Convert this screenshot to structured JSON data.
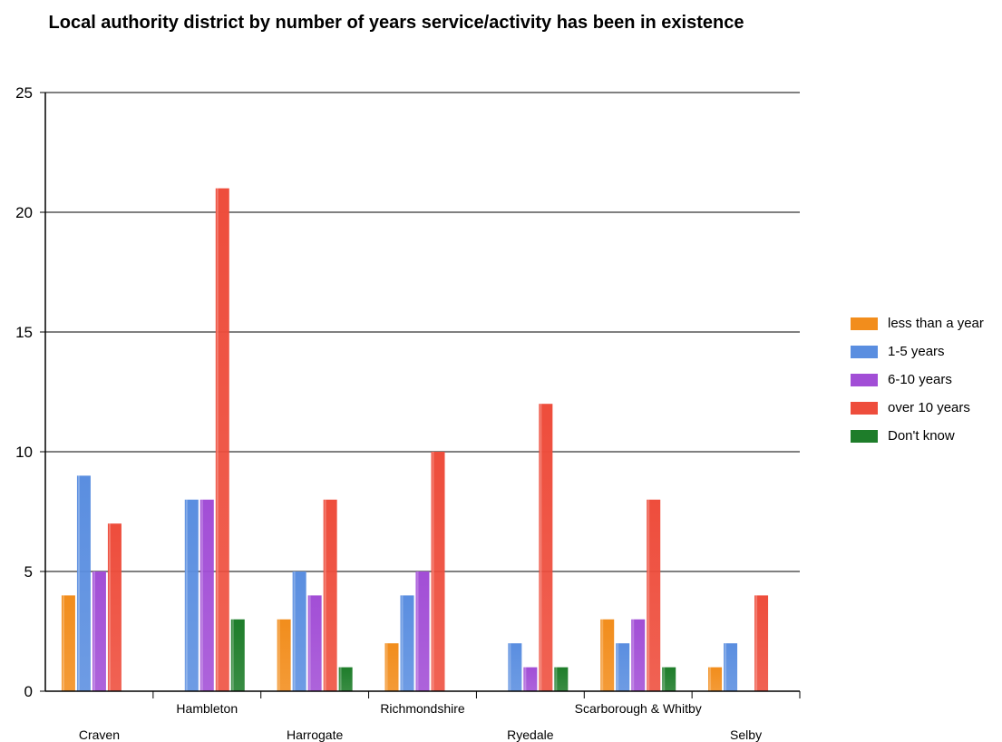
{
  "chart_data": {
    "type": "bar",
    "title": "Local authority district by number of years service/activity has been in existence",
    "xlabel": "",
    "ylabel": "",
    "ylim": [
      0,
      25
    ],
    "yticks": [
      0,
      5,
      10,
      15,
      20,
      25
    ],
    "grid": true,
    "legend_position": "right",
    "categories": [
      "Craven",
      "Hambleton",
      "Harrogate",
      "Richmondshire",
      "Ryedale",
      "Scarborough & Whitby",
      "Selby"
    ],
    "series": [
      {
        "name": "less than a year",
        "color": "#f28d1c",
        "values": [
          4,
          0,
          3,
          2,
          0,
          3,
          1
        ]
      },
      {
        "name": "1-5 years",
        "color": "#5a8ee0",
        "values": [
          9,
          8,
          5,
          4,
          2,
          2,
          2
        ]
      },
      {
        "name": "6-10 years",
        "color": "#a24ed6",
        "values": [
          5,
          8,
          4,
          5,
          1,
          3,
          0
        ]
      },
      {
        "name": "over 10 years",
        "color": "#ee4d3c",
        "values": [
          7,
          21,
          8,
          10,
          12,
          8,
          4
        ]
      },
      {
        "name": "Don't know",
        "color": "#1e7d2a",
        "values": [
          0,
          3,
          1,
          0,
          1,
          1,
          0
        ]
      }
    ]
  }
}
